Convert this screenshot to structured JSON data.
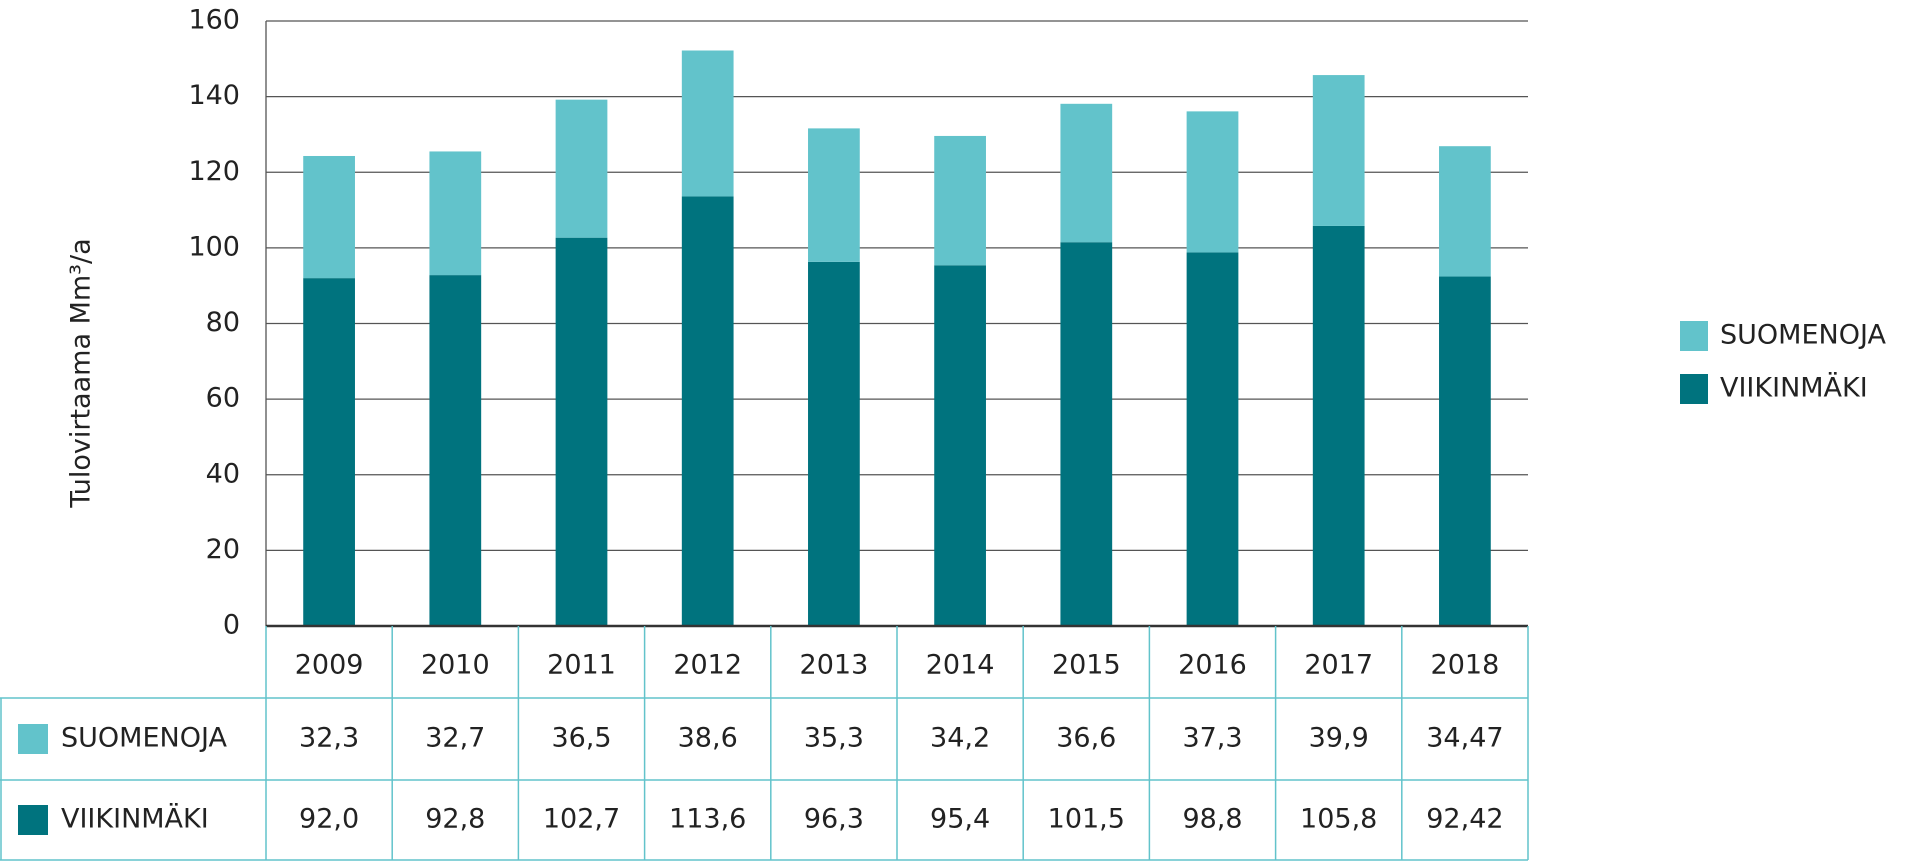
{
  "chart_data": {
    "type": "stacked-bar",
    "y_label": "Tulovirtaama Mm³/a",
    "categories": [
      "2009",
      "2010",
      "2011",
      "2012",
      "2013",
      "2014",
      "2015",
      "2016",
      "2017",
      "2018"
    ],
    "series": [
      {
        "name": "SUOMENOJA",
        "color": "#62c3cb",
        "values": [
          32.3,
          32.7,
          36.5,
          38.6,
          35.3,
          34.2,
          36.6,
          37.3,
          39.9,
          34.47
        ],
        "value_labels": [
          "32,3",
          "32,7",
          "36,5",
          "38,6",
          "35,3",
          "34,2",
          "36,6",
          "37,3",
          "39,9",
          "34,47"
        ]
      },
      {
        "name": "VIIKINMÄKI",
        "color": "#00737e",
        "values": [
          92.0,
          92.8,
          102.7,
          113.6,
          96.3,
          95.4,
          101.5,
          98.8,
          105.8,
          92.42
        ],
        "value_labels": [
          "92,0",
          "92,8",
          "102,7",
          "113,6",
          "96,3",
          "95,4",
          "101,5",
          "98,8",
          "105,8",
          "92,42"
        ]
      }
    ],
    "ylim": [
      0,
      160
    ],
    "yticks": [
      0,
      20,
      40,
      60,
      80,
      100,
      120,
      140,
      160
    ],
    "grid": true,
    "legend": "right"
  }
}
